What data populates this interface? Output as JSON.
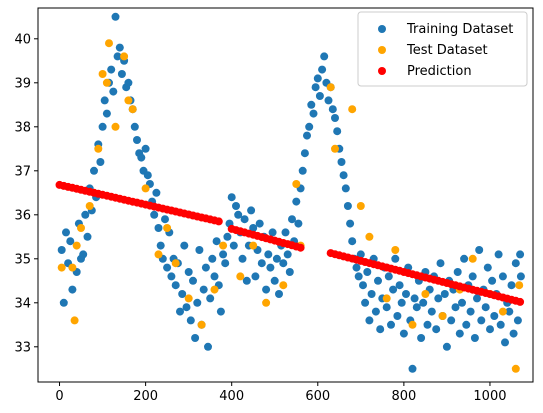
{
  "chart_data": {
    "type": "scatter",
    "xlim": [
      -50,
      1100
    ],
    "ylim": [
      32.2,
      40.7
    ],
    "xticks": [
      0,
      200,
      400,
      600,
      800,
      1000
    ],
    "yticks": [
      33,
      34,
      35,
      36,
      37,
      38,
      39,
      40
    ],
    "grid": false,
    "legend": "top-right",
    "series": [
      {
        "name": "Training Dataset",
        "color": "#1f77b4",
        "points": [
          [
            5,
            35.2
          ],
          [
            10,
            34.0
          ],
          [
            15,
            35.6
          ],
          [
            20,
            34.9
          ],
          [
            25,
            35.4
          ],
          [
            30,
            34.3
          ],
          [
            40,
            34.7
          ],
          [
            45,
            35.8
          ],
          [
            50,
            35.0
          ],
          [
            55,
            35.1
          ],
          [
            60,
            36.0
          ],
          [
            65,
            35.5
          ],
          [
            70,
            36.6
          ],
          [
            75,
            36.1
          ],
          [
            80,
            37.0
          ],
          [
            85,
            36.4
          ],
          [
            90,
            37.6
          ],
          [
            95,
            37.2
          ],
          [
            100,
            38.0
          ],
          [
            105,
            38.6
          ],
          [
            110,
            38.3
          ],
          [
            115,
            39.0
          ],
          [
            120,
            39.3
          ],
          [
            125,
            38.8
          ],
          [
            130,
            40.5
          ],
          [
            135,
            39.6
          ],
          [
            140,
            39.8
          ],
          [
            145,
            39.2
          ],
          [
            150,
            39.5
          ],
          [
            155,
            38.9
          ],
          [
            160,
            39.0
          ],
          [
            165,
            38.6
          ],
          [
            170,
            38.4
          ],
          [
            175,
            38.0
          ],
          [
            180,
            37.7
          ],
          [
            185,
            37.4
          ],
          [
            190,
            37.3
          ],
          [
            195,
            37.0
          ],
          [
            200,
            37.5
          ],
          [
            205,
            36.9
          ],
          [
            210,
            36.7
          ],
          [
            215,
            36.3
          ],
          [
            220,
            36.0
          ],
          [
            225,
            36.5
          ],
          [
            230,
            35.7
          ],
          [
            235,
            35.3
          ],
          [
            240,
            35.0
          ],
          [
            245,
            35.9
          ],
          [
            250,
            34.8
          ],
          [
            255,
            35.6
          ],
          [
            260,
            34.6
          ],
          [
            265,
            35.0
          ],
          [
            270,
            34.4
          ],
          [
            275,
            34.9
          ],
          [
            280,
            33.8
          ],
          [
            285,
            34.2
          ],
          [
            290,
            35.3
          ],
          [
            295,
            33.9
          ],
          [
            300,
            34.7
          ],
          [
            305,
            33.6
          ],
          [
            310,
            34.5
          ],
          [
            315,
            33.2
          ],
          [
            320,
            34.0
          ],
          [
            325,
            35.2
          ],
          [
            330,
            33.5
          ],
          [
            335,
            34.3
          ],
          [
            340,
            34.8
          ],
          [
            345,
            33.0
          ],
          [
            350,
            34.1
          ],
          [
            355,
            35.0
          ],
          [
            360,
            34.6
          ],
          [
            365,
            35.4
          ],
          [
            370,
            34.4
          ],
          [
            375,
            33.8
          ],
          [
            380,
            35.1
          ],
          [
            385,
            34.9
          ],
          [
            390,
            35.5
          ],
          [
            395,
            35.8
          ],
          [
            400,
            36.4
          ],
          [
            405,
            35.3
          ],
          [
            410,
            36.2
          ],
          [
            415,
            36.0
          ],
          [
            420,
            35.6
          ],
          [
            425,
            35.0
          ],
          [
            430,
            35.9
          ],
          [
            435,
            34.5
          ],
          [
            440,
            35.3
          ],
          [
            445,
            36.1
          ],
          [
            450,
            35.7
          ],
          [
            455,
            34.6
          ],
          [
            460,
            35.2
          ],
          [
            465,
            35.8
          ],
          [
            470,
            34.9
          ],
          [
            475,
            35.5
          ],
          [
            480,
            34.3
          ],
          [
            485,
            35.1
          ],
          [
            490,
            34.8
          ],
          [
            495,
            35.6
          ],
          [
            500,
            34.5
          ],
          [
            505,
            35.0
          ],
          [
            510,
            34.2
          ],
          [
            515,
            35.3
          ],
          [
            520,
            34.9
          ],
          [
            525,
            35.6
          ],
          [
            530,
            35.1
          ],
          [
            535,
            34.7
          ],
          [
            540,
            35.9
          ],
          [
            545,
            35.4
          ],
          [
            550,
            36.3
          ],
          [
            555,
            35.8
          ],
          [
            560,
            36.6
          ],
          [
            565,
            37.0
          ],
          [
            570,
            37.4
          ],
          [
            575,
            37.8
          ],
          [
            580,
            38.0
          ],
          [
            585,
            38.5
          ],
          [
            590,
            38.3
          ],
          [
            595,
            38.9
          ],
          [
            600,
            39.1
          ],
          [
            605,
            38.7
          ],
          [
            610,
            39.3
          ],
          [
            615,
            39.6
          ],
          [
            620,
            39.0
          ],
          [
            625,
            38.6
          ],
          [
            630,
            38.9
          ],
          [
            635,
            38.4
          ],
          [
            640,
            38.2
          ],
          [
            645,
            37.9
          ],
          [
            650,
            37.5
          ],
          [
            655,
            37.2
          ],
          [
            660,
            36.9
          ],
          [
            665,
            36.6
          ],
          [
            670,
            36.2
          ],
          [
            675,
            35.8
          ],
          [
            680,
            35.4
          ],
          [
            685,
            35.0
          ],
          [
            690,
            34.8
          ],
          [
            695,
            34.6
          ],
          [
            700,
            35.1
          ],
          [
            705,
            34.4
          ],
          [
            710,
            34.0
          ],
          [
            715,
            34.7
          ],
          [
            720,
            33.6
          ],
          [
            725,
            34.2
          ],
          [
            730,
            35.0
          ],
          [
            735,
            33.8
          ],
          [
            740,
            34.5
          ],
          [
            745,
            33.4
          ],
          [
            750,
            34.1
          ],
          [
            755,
            34.8
          ],
          [
            760,
            33.9
          ],
          [
            765,
            34.6
          ],
          [
            770,
            33.5
          ],
          [
            775,
            34.3
          ],
          [
            780,
            35.0
          ],
          [
            785,
            33.7
          ],
          [
            790,
            34.4
          ],
          [
            795,
            34.0
          ],
          [
            800,
            33.3
          ],
          [
            805,
            34.2
          ],
          [
            810,
            34.8
          ],
          [
            815,
            33.6
          ],
          [
            820,
            32.5
          ],
          [
            825,
            34.1
          ],
          [
            830,
            33.9
          ],
          [
            835,
            34.5
          ],
          [
            840,
            33.2
          ],
          [
            845,
            34.0
          ],
          [
            850,
            34.7
          ],
          [
            855,
            33.5
          ],
          [
            860,
            34.3
          ],
          [
            865,
            33.8
          ],
          [
            870,
            34.6
          ],
          [
            875,
            33.4
          ],
          [
            880,
            34.1
          ],
          [
            885,
            34.9
          ],
          [
            890,
            33.7
          ],
          [
            895,
            34.2
          ],
          [
            900,
            33.0
          ],
          [
            905,
            34.5
          ],
          [
            910,
            33.6
          ],
          [
            915,
            34.3
          ],
          [
            920,
            33.9
          ],
          [
            925,
            34.7
          ],
          [
            930,
            33.3
          ],
          [
            935,
            34.0
          ],
          [
            940,
            35.0
          ],
          [
            945,
            33.5
          ],
          [
            950,
            34.4
          ],
          [
            955,
            33.8
          ],
          [
            960,
            34.6
          ],
          [
            965,
            33.2
          ],
          [
            970,
            34.1
          ],
          [
            975,
            35.2
          ],
          [
            980,
            33.6
          ],
          [
            985,
            34.3
          ],
          [
            990,
            33.9
          ],
          [
            995,
            34.8
          ],
          [
            1000,
            33.4
          ],
          [
            1005,
            34.5
          ],
          [
            1010,
            33.7
          ],
          [
            1015,
            34.2
          ],
          [
            1020,
            35.1
          ],
          [
            1025,
            33.5
          ],
          [
            1030,
            34.6
          ],
          [
            1035,
            33.1
          ],
          [
            1040,
            34.0
          ],
          [
            1045,
            33.8
          ],
          [
            1050,
            34.4
          ],
          [
            1055,
            33.3
          ],
          [
            1060,
            34.9
          ],
          [
            1065,
            33.6
          ],
          [
            1070,
            35.1
          ],
          [
            1072,
            34.6
          ]
        ]
      },
      {
        "name": "Test Dataset",
        "color": "#ffa500",
        "points": [
          [
            5,
            34.8
          ],
          [
            30,
            34.8
          ],
          [
            35,
            33.6
          ],
          [
            40,
            35.3
          ],
          [
            50,
            35.7
          ],
          [
            70,
            36.2
          ],
          [
            90,
            37.5
          ],
          [
            100,
            39.2
          ],
          [
            110,
            39.0
          ],
          [
            115,
            39.9
          ],
          [
            130,
            38.0
          ],
          [
            150,
            39.6
          ],
          [
            160,
            38.6
          ],
          [
            170,
            38.4
          ],
          [
            200,
            36.6
          ],
          [
            230,
            35.1
          ],
          [
            250,
            35.7
          ],
          [
            270,
            34.9
          ],
          [
            300,
            34.1
          ],
          [
            330,
            33.5
          ],
          [
            360,
            34.3
          ],
          [
            380,
            35.3
          ],
          [
            420,
            34.6
          ],
          [
            450,
            35.3
          ],
          [
            480,
            34.0
          ],
          [
            520,
            34.4
          ],
          [
            550,
            36.7
          ],
          [
            560,
            35.3
          ],
          [
            630,
            38.9
          ],
          [
            640,
            37.5
          ],
          [
            680,
            38.4
          ],
          [
            700,
            36.2
          ],
          [
            720,
            35.5
          ],
          [
            760,
            34.1
          ],
          [
            780,
            35.2
          ],
          [
            820,
            33.5
          ],
          [
            850,
            34.2
          ],
          [
            890,
            33.7
          ],
          [
            930,
            34.3
          ],
          [
            960,
            35.0
          ],
          [
            1000,
            34.2
          ],
          [
            1030,
            33.8
          ],
          [
            1060,
            32.5
          ],
          [
            1068,
            34.4
          ]
        ]
      },
      {
        "name": "Prediction",
        "color": "#ff0000",
        "segments": [
          [
            0,
            36.68,
            370,
            35.85
          ],
          [
            400,
            35.68,
            565,
            35.24
          ],
          [
            630,
            35.13,
            1070,
            34.02
          ]
        ]
      }
    ]
  }
}
